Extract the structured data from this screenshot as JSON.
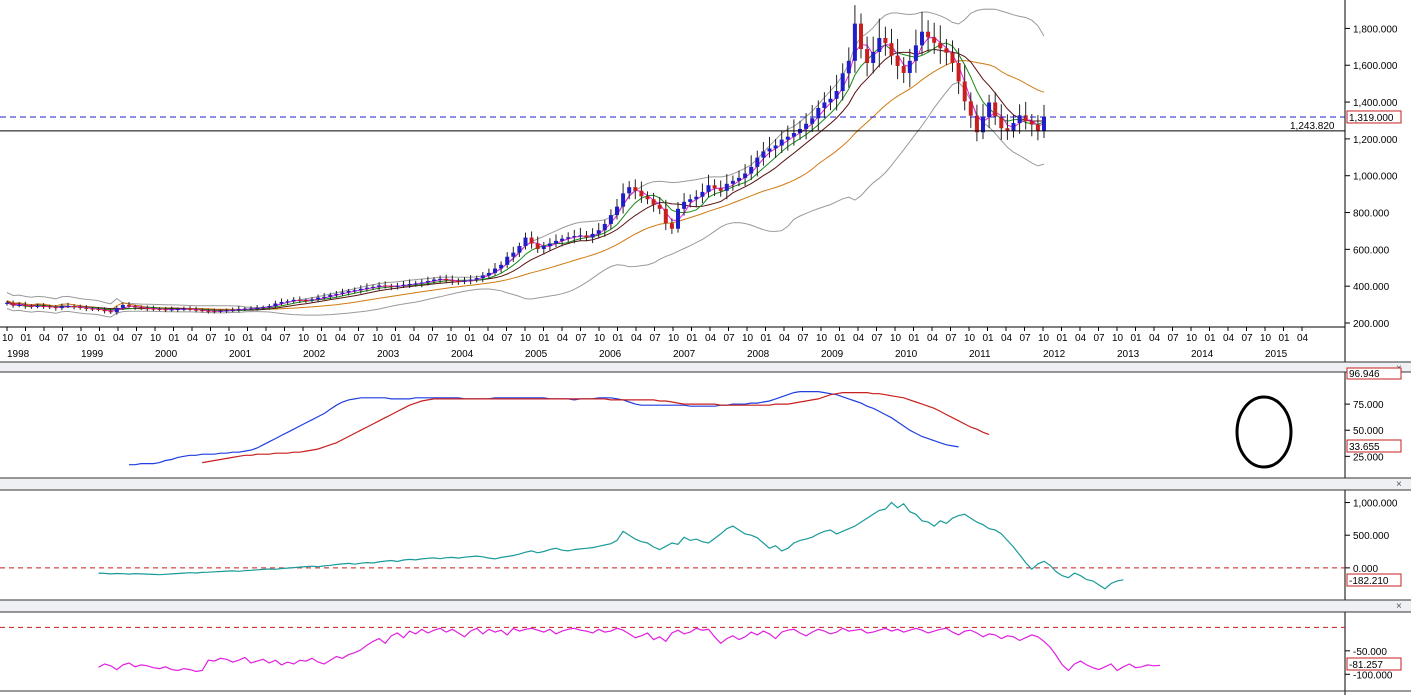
{
  "colors": {
    "up_candle": "#1f1fc8",
    "down_candle": "#c81f1f",
    "ma_magenta": "#e020e0",
    "ma_green": "#1a8a1a",
    "ma_dark": "#5a1010",
    "ma_orange": "#d07a10",
    "bollinger": "#9a9a9a",
    "rsi_blue": "#1f3fe0",
    "rsi_red": "#c81f1f",
    "momentum": "#1a9a9a",
    "oscillator": "#e020e0",
    "dashed_ref": "#c81f1f",
    "price_ref": "#1f1fc8"
  },
  "close_button_label": "×",
  "chart_data": [
    {
      "type": "candlestick",
      "panel": "price",
      "ylim": [
        200,
        1900
      ],
      "yticks": [
        "200.000",
        "400.000",
        "600.000",
        "800.000",
        "1,000.000",
        "1,200.000",
        "1,400.000",
        "1,600.000",
        "1,800.000"
      ],
      "x_month_labels": [
        "10",
        "01",
        "04",
        "07",
        "10",
        "01",
        "04",
        "07",
        "10",
        "01",
        "04",
        "07",
        "10",
        "01",
        "04",
        "07",
        "10",
        "01",
        "04",
        "07",
        "10",
        "01",
        "04",
        "07",
        "10",
        "01",
        "04",
        "07",
        "10",
        "01",
        "04",
        "07",
        "10",
        "01",
        "04",
        "07",
        "10",
        "01",
        "04",
        "07",
        "10",
        "01",
        "04",
        "07",
        "10",
        "01",
        "04",
        "07",
        "10",
        "01",
        "04",
        "07",
        "10",
        "01",
        "04",
        "07",
        "10",
        "01",
        "04",
        "07",
        "10",
        "01",
        "04",
        "07",
        "10",
        "01",
        "04",
        "07",
        "10",
        "01",
        "04"
      ],
      "x_year_labels": [
        "1998",
        "1999",
        "2000",
        "2001",
        "2002",
        "2003",
        "2004",
        "2005",
        "2006",
        "2007",
        "2008",
        "2009",
        "2010",
        "2011",
        "2012",
        "2013",
        "2014",
        "2015"
      ],
      "current_price_label": "1,319.000",
      "horizontal_line_label": "1,243.820",
      "current_price": 1319,
      "horizontal_line_value": 1243.82,
      "monthly_closes": [
        310,
        296,
        298,
        292,
        288,
        292,
        290,
        286,
        281,
        290,
        292,
        287,
        282,
        278,
        276,
        272,
        264,
        258,
        282,
        298,
        291,
        284,
        281,
        278,
        276,
        274,
        272,
        274,
        276,
        278,
        272,
        270,
        266,
        264,
        262,
        266,
        268,
        271,
        276,
        278,
        279,
        282,
        286,
        292,
        306,
        314,
        318,
        326,
        324,
        322,
        328,
        338,
        342,
        352,
        358,
        366,
        374,
        378,
        386,
        392,
        396,
        404,
        401,
        398,
        402,
        408,
        412,
        415,
        420,
        428,
        436,
        440,
        432,
        428,
        424,
        430,
        436,
        444,
        458,
        472,
        496,
        516,
        560,
        582,
        618,
        664,
        632,
        602,
        618,
        632,
        646,
        658,
        666,
        672,
        676,
        664,
        684,
        704,
        738,
        786,
        832,
        904,
        938,
        918,
        888,
        872,
        842,
        820,
        742,
        712,
        820,
        858,
        872,
        886,
        912,
        948,
        932,
        918,
        956,
        972,
        988,
        1012,
        1048,
        1098,
        1132,
        1148,
        1164,
        1196,
        1212,
        1232,
        1254,
        1282,
        1312,
        1368,
        1398,
        1418,
        1460,
        1556,
        1624,
        1826,
        1688,
        1612,
        1672,
        1748,
        1720,
        1652,
        1596,
        1558,
        1624,
        1708,
        1782,
        1752,
        1722,
        1692,
        1668,
        1612,
        1512,
        1404,
        1326,
        1236,
        1318,
        1398,
        1322,
        1258,
        1244,
        1286,
        1328,
        1296,
        1278,
        1242,
        1319
      ],
      "candle_interval_months": 1,
      "start": "1997-09",
      "series_names": []
    },
    {
      "type": "line",
      "panel": "rsi",
      "yticks": [
        "25.000",
        "50.000",
        "75.000"
      ],
      "top_label": "96.946",
      "last_value_label": "33.655",
      "ylim": [
        10,
        100
      ],
      "series": [
        {
          "color_key": "rsi_blue",
          "start_index": 20,
          "values": [
            17,
            17,
            18,
            18,
            18,
            19,
            21,
            22,
            24,
            25,
            26,
            26,
            27,
            27,
            27,
            28,
            28,
            29,
            29,
            30,
            31,
            33,
            36,
            39,
            42,
            45,
            48,
            51,
            54,
            57,
            60,
            63,
            66,
            70,
            74,
            77,
            79,
            80,
            81,
            81,
            81,
            81,
            81,
            80,
            80,
            80,
            80,
            81,
            81,
            81,
            81,
            81,
            81,
            81,
            81,
            80,
            80,
            80,
            80,
            80,
            81,
            81,
            81,
            81,
            81,
            81,
            81,
            81,
            81,
            80,
            80,
            80,
            80,
            79,
            80,
            80,
            80,
            81,
            81,
            81,
            80,
            79,
            77,
            75,
            74,
            74,
            74,
            74,
            74,
            74,
            74,
            74,
            73,
            73,
            73,
            73,
            73,
            74,
            74,
            75,
            75,
            75,
            76,
            76,
            77,
            78,
            80,
            82,
            84,
            86,
            87,
            87,
            87,
            87,
            86,
            85,
            84,
            82,
            80,
            78,
            76,
            73,
            71,
            68,
            65,
            62,
            58,
            54,
            50,
            47,
            44,
            42,
            40,
            38,
            36,
            35,
            34
          ]
        },
        {
          "color_key": "rsi_red",
          "start_index": 32,
          "values": [
            19,
            20,
            21,
            22,
            23,
            24,
            25,
            26,
            26,
            27,
            27,
            27,
            28,
            28,
            28,
            29,
            29,
            30,
            31,
            32,
            34,
            36,
            38,
            41,
            44,
            47,
            50,
            53,
            56,
            59,
            62,
            65,
            68,
            71,
            74,
            76,
            78,
            79,
            80,
            80,
            80,
            80,
            80,
            80,
            80,
            80,
            80,
            80,
            80,
            80,
            80,
            80,
            80,
            80,
            80,
            80,
            80,
            80,
            80,
            80,
            80,
            80,
            80,
            80,
            80,
            80,
            80,
            79,
            79,
            79,
            79,
            79,
            79,
            79,
            79,
            78,
            78,
            77,
            76,
            75,
            75,
            75,
            75,
            75,
            75,
            74,
            74,
            74,
            74,
            74,
            74,
            74,
            74,
            74,
            75,
            75,
            75,
            76,
            77,
            78,
            79,
            80,
            82,
            84,
            85,
            86,
            86,
            86,
            86,
            86,
            85,
            85,
            84,
            83,
            82,
            81,
            79,
            77,
            75,
            73,
            71,
            68,
            65,
            62,
            59,
            56,
            53,
            51,
            48,
            46
          ]
        }
      ]
    },
    {
      "type": "line",
      "panel": "momentum",
      "yticks": [
        "1,000.000",
        "500.000",
        "0.000"
      ],
      "last_value_label": "-182.210",
      "ylim": [
        -400,
        1100
      ],
      "reference_line": 0,
      "series": [
        {
          "color_key": "momentum",
          "start_index": 15,
          "values": [
            -80,
            -85,
            -92,
            -86,
            -90,
            -95,
            -88,
            -92,
            -96,
            -100,
            -104,
            -98,
            -92,
            -86,
            -80,
            -74,
            -78,
            -70,
            -66,
            -60,
            -56,
            -50,
            -46,
            -52,
            -44,
            -38,
            -30,
            -24,
            -18,
            -22,
            -10,
            -4,
            4,
            12,
            20,
            26,
            18,
            30,
            40,
            52,
            60,
            68,
            56,
            72,
            80,
            74,
            92,
            104,
            112,
            98,
            120,
            130,
            122,
            138,
            146,
            152,
            140,
            156,
            160,
            150,
            164,
            172,
            180,
            170,
            150,
            138,
            160,
            174,
            190,
            210,
            240,
            260,
            230,
            250,
            280,
            300,
            270,
            260,
            280,
            290,
            300,
            310,
            330,
            350,
            370,
            420,
            560,
            500,
            440,
            400,
            380,
            320,
            280,
            330,
            380,
            360,
            470,
            420,
            440,
            400,
            380,
            450,
            520,
            600,
            640,
            580,
            520,
            500,
            460,
            380,
            300,
            340,
            260,
            300,
            380,
            420,
            440,
            470,
            520,
            560,
            580,
            520,
            560,
            600,
            640,
            700,
            760,
            820,
            880,
            900,
            1000,
            920,
            980,
            860,
            820,
            720,
            700,
            640,
            720,
            680,
            760,
            800,
            820,
            760,
            700,
            660,
            600,
            580,
            520,
            420,
            320,
            200,
            80,
            -20,
            60,
            100,
            40,
            -60,
            -120,
            -150,
            -80,
            -120,
            -180,
            -200,
            -260,
            -320,
            -240,
            -200,
            -182
          ]
        }
      ]
    },
    {
      "type": "line",
      "panel": "oscillator",
      "yticks": [
        "-50.000",
        "-100.000"
      ],
      "last_value_label": "-81.257",
      "ylim": [
        -125,
        20
      ],
      "reference_line": 0,
      "series": [
        {
          "color_key": "oscillator",
          "start_index": 15,
          "values": [
            -85,
            -78,
            -82,
            -90,
            -80,
            -76,
            -84,
            -80,
            -82,
            -86,
            -88,
            -84,
            -90,
            -92,
            -88,
            -90,
            -94,
            -92,
            -70,
            -72,
            -66,
            -68,
            -74,
            -70,
            -64,
            -76,
            -72,
            -68,
            -76,
            -70,
            -80,
            -74,
            -78,
            -70,
            -72,
            -66,
            -74,
            -78,
            -70,
            -62,
            -66,
            -58,
            -54,
            -48,
            -38,
            -30,
            -24,
            -34,
            -18,
            -12,
            -22,
            -8,
            -14,
            -4,
            -12,
            -6,
            -2,
            -10,
            -4,
            -12,
            -20,
            -8,
            -2,
            -14,
            -4,
            -10,
            -6,
            -16,
            -2,
            -8,
            -4,
            -2,
            -6,
            -10,
            -4,
            -14,
            -8,
            -4,
            -2,
            -6,
            -8,
            -12,
            -4,
            -10,
            -8,
            -2,
            -6,
            -14,
            -22,
            -18,
            -12,
            -26,
            -20,
            -30,
            -12,
            -6,
            -14,
            -10,
            -2,
            -6,
            -4,
            -20,
            -34,
            -24,
            -18,
            -26,
            -20,
            -10,
            -16,
            -8,
            -14,
            -24,
            -10,
            -6,
            -4,
            -12,
            -18,
            -10,
            -4,
            -8,
            -14,
            -10,
            -2,
            -8,
            -6,
            -4,
            -12,
            -10,
            -6,
            -2,
            -8,
            -4,
            -10,
            -6,
            -2,
            -6,
            -12,
            -8,
            -4,
            -2,
            -10,
            -16,
            -8,
            -6,
            -12,
            -20,
            -14,
            -16,
            -24,
            -18,
            -20,
            -28,
            -22,
            -16,
            -20,
            -30,
            -42,
            -60,
            -80,
            -92,
            -78,
            -72,
            -80,
            -86,
            -90,
            -84,
            -78,
            -92,
            -84,
            -78,
            -86,
            -84,
            -80,
            -82,
            -81
          ]
        }
      ]
    }
  ]
}
